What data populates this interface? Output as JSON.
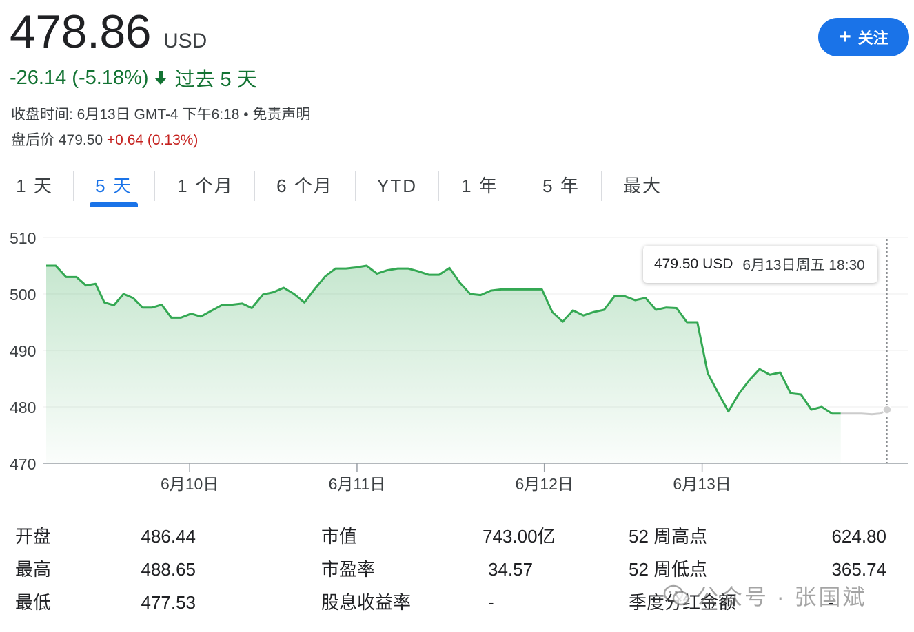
{
  "quote": {
    "price": "478.86",
    "currency": "USD",
    "change": "-26.14 (-5.18%)",
    "period": "过去 5 天",
    "close_info": "收盘时间: 6月13日 GMT-4 下午6:18 • 免责声明",
    "after_hours_label": "盘后价 479.50",
    "after_hours_change": "+0.64 (0.13%)"
  },
  "follow_button": {
    "icon": "plus-icon",
    "label": "关注"
  },
  "tabs": [
    {
      "label": "1 天",
      "active": false
    },
    {
      "label": "5 天",
      "active": true
    },
    {
      "label": "1 个月",
      "active": false
    },
    {
      "label": "6 个月",
      "active": false
    },
    {
      "label": "YTD",
      "active": false
    },
    {
      "label": "1 年",
      "active": false
    },
    {
      "label": "5 年",
      "active": false
    },
    {
      "label": "最大",
      "active": false
    }
  ],
  "tooltip": {
    "price": "479.50 USD",
    "time": "6月13日周五 18:30"
  },
  "colors": {
    "line": "#34a853",
    "accent": "#1a73e8",
    "down": "#137333",
    "up": "#c5221f",
    "after_hours_line": "#cccccc"
  },
  "chart_data": {
    "type": "line",
    "ylim": [
      470,
      510
    ],
    "yticks": [
      "510",
      "500",
      "490",
      "480",
      "470"
    ],
    "xticks": [
      {
        "label": "6月10日",
        "x": 18
      },
      {
        "label": "6月11日",
        "x": 39
      },
      {
        "label": "6月12日",
        "x": 62.5
      },
      {
        "label": "6月13日",
        "x": 82.3
      }
    ],
    "xlim": [
      0,
      107.5
    ],
    "grid": true,
    "series": [
      {
        "values": [
          [
            0,
            505
          ],
          [
            1.2,
            505
          ],
          [
            2.5,
            503
          ],
          [
            3.8,
            503
          ],
          [
            5,
            501.5
          ],
          [
            6.2,
            501.8
          ],
          [
            7.3,
            498.5
          ],
          [
            8.5,
            498
          ],
          [
            9.7,
            500
          ],
          [
            10.9,
            499.3
          ],
          [
            12.1,
            497.6
          ],
          [
            13.3,
            497.6
          ],
          [
            14.5,
            498.1
          ],
          [
            15.7,
            495.8
          ],
          [
            16.9,
            495.8
          ],
          [
            18.2,
            496.5
          ],
          [
            19.4,
            496
          ],
          [
            20.7,
            497
          ],
          [
            22,
            498
          ],
          [
            23.3,
            498.1
          ],
          [
            24.6,
            498.3
          ],
          [
            25.8,
            497.5
          ],
          [
            27.2,
            499.9
          ],
          [
            28.5,
            500.3
          ],
          [
            29.8,
            501.1
          ],
          [
            31.1,
            500
          ],
          [
            32.4,
            498.5
          ],
          [
            33.7,
            500.9
          ],
          [
            35,
            503.1
          ],
          [
            36.3,
            504.5
          ],
          [
            37.6,
            504.5
          ],
          [
            38.9,
            504.7
          ],
          [
            40.2,
            505
          ],
          [
            41.5,
            503.6
          ],
          [
            42.8,
            504.2
          ],
          [
            44.1,
            504.5
          ],
          [
            45.4,
            504.5
          ],
          [
            46.7,
            504
          ],
          [
            48,
            503.4
          ],
          [
            49.3,
            503.4
          ],
          [
            50.6,
            504.6
          ],
          [
            51.9,
            502
          ],
          [
            53.2,
            500
          ],
          [
            54.5,
            499.8
          ],
          [
            55.8,
            500.6
          ],
          [
            57.1,
            500.8
          ],
          [
            58.4,
            500.8
          ],
          [
            59.7,
            500.8
          ],
          [
            61,
            500.8
          ],
          [
            62.2,
            500.8
          ],
          [
            63.5,
            496.8
          ],
          [
            64.8,
            495.1
          ],
          [
            66.1,
            497.1
          ],
          [
            67.4,
            496.2
          ],
          [
            68.7,
            496.8
          ],
          [
            70,
            497.2
          ],
          [
            71.3,
            499.6
          ],
          [
            72.6,
            499.6
          ],
          [
            73.9,
            498.9
          ],
          [
            75.2,
            499.3
          ],
          [
            76.5,
            497.2
          ],
          [
            77.8,
            497.6
          ],
          [
            79.1,
            497.5
          ],
          [
            80.4,
            495
          ],
          [
            81.7,
            495
          ],
          [
            83,
            486
          ],
          [
            84.3,
            482.5
          ],
          [
            85.6,
            479.2
          ],
          [
            86.9,
            482.3
          ],
          [
            88.2,
            484.7
          ],
          [
            89.5,
            486.7
          ],
          [
            90.8,
            485.7
          ],
          [
            92.1,
            486.1
          ],
          [
            93.4,
            482.4
          ],
          [
            94.7,
            482.2
          ],
          [
            96,
            479.5
          ],
          [
            97.3,
            480
          ],
          [
            98.6,
            478.8
          ],
          [
            99.7,
            478.8
          ]
        ]
      },
      {
        "values": [
          [
            99.7,
            478.8
          ],
          [
            101,
            478.8
          ],
          [
            102.3,
            478.8
          ],
          [
            103.6,
            478.7
          ],
          [
            104.6,
            478.8
          ],
          [
            105.5,
            479.5
          ]
        ]
      }
    ],
    "marker": {
      "x": 105.5,
      "y": 479.5
    }
  },
  "stats": [
    {
      "label": "开盘",
      "value": "486.44"
    },
    {
      "label": "最高",
      "value": "488.65"
    },
    {
      "label": "最低",
      "value": "477.53"
    },
    {
      "label": "市值",
      "value": "743.00亿"
    },
    {
      "label": "市盈率",
      "value": "34.57"
    },
    {
      "label": "股息收益率",
      "value": "-"
    },
    {
      "label": "52 周高点",
      "value": "624.80"
    },
    {
      "label": "52 周低点",
      "value": "365.74"
    },
    {
      "label": "季度分红金额",
      "value": "-"
    }
  ],
  "watermark": {
    "icon": "wechat-icon",
    "text": "公众号 · 张国斌"
  }
}
